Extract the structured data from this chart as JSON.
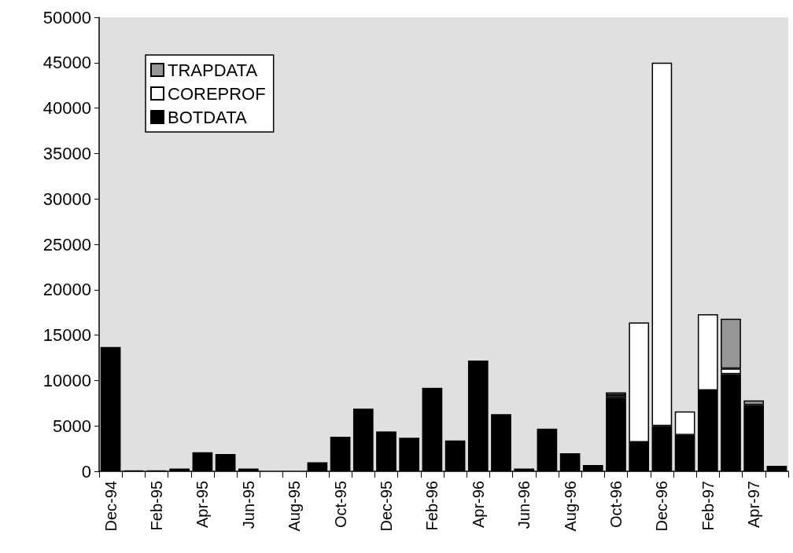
{
  "chart_data": {
    "type": "bar",
    "stacked": true,
    "categories": [
      "Dec-94",
      null,
      "Feb-95",
      null,
      "Apr-95",
      null,
      "Jun-95",
      null,
      "Aug-95",
      null,
      "Oct-95",
      null,
      "Dec-95",
      null,
      "Feb-96",
      null,
      "Apr-96",
      null,
      "Jun-96",
      null,
      "Aug-96",
      null,
      "Oct-96",
      null,
      "Dec-96",
      null,
      "Feb-97",
      null,
      "Apr-97",
      null
    ],
    "series": [
      {
        "name": "BOTDATA",
        "color": "#000000",
        "values": [
          13700,
          100,
          100,
          300,
          2100,
          1900,
          300,
          0,
          0,
          1000,
          3800,
          6900,
          4400,
          3700,
          9200,
          3400,
          12200,
          6300,
          300,
          4700,
          2000,
          700,
          8100,
          3200,
          5000,
          4000,
          8900,
          10700,
          7300,
          600
        ]
      },
      {
        "name": "COREPROF",
        "color": "#ffffff",
        "values": [
          0,
          0,
          0,
          0,
          0,
          0,
          0,
          0,
          0,
          0,
          0,
          0,
          0,
          0,
          0,
          0,
          0,
          0,
          0,
          0,
          0,
          0,
          300,
          13200,
          40000,
          2600,
          8400,
          600,
          0,
          0
        ]
      },
      {
        "name": "TRAPDATA",
        "color": "#969696",
        "values": [
          0,
          0,
          0,
          0,
          0,
          0,
          0,
          0,
          0,
          0,
          0,
          0,
          0,
          0,
          0,
          0,
          0,
          0,
          0,
          0,
          0,
          0,
          300,
          0,
          0,
          0,
          0,
          5500,
          500,
          0
        ]
      }
    ],
    "ylim": [
      0,
      50000
    ],
    "yticks": [
      0,
      5000,
      10000,
      15000,
      20000,
      25000,
      30000,
      35000,
      40000,
      45000,
      50000
    ],
    "grid": false,
    "legend": "top left"
  }
}
